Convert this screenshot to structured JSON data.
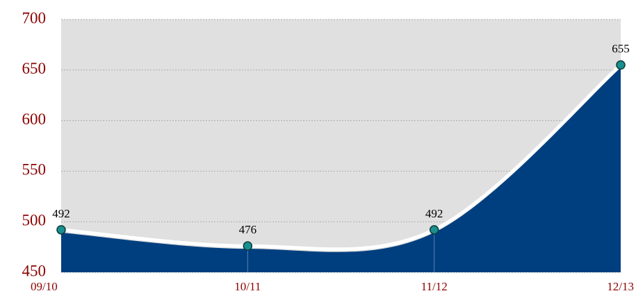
{
  "chart_data": {
    "type": "area",
    "categories": [
      "09/10",
      "10/11",
      "11/12",
      "12/13"
    ],
    "values": [
      492,
      476,
      492,
      655
    ],
    "color": "#003f7f",
    "line_color": "#ffffff",
    "marker_color": "#1a8f8f",
    "plot_background": "#e0e0e0",
    "ylim": [
      450,
      700
    ],
    "yticks": [
      450,
      500,
      550,
      600,
      650,
      700
    ],
    "grid": true
  }
}
